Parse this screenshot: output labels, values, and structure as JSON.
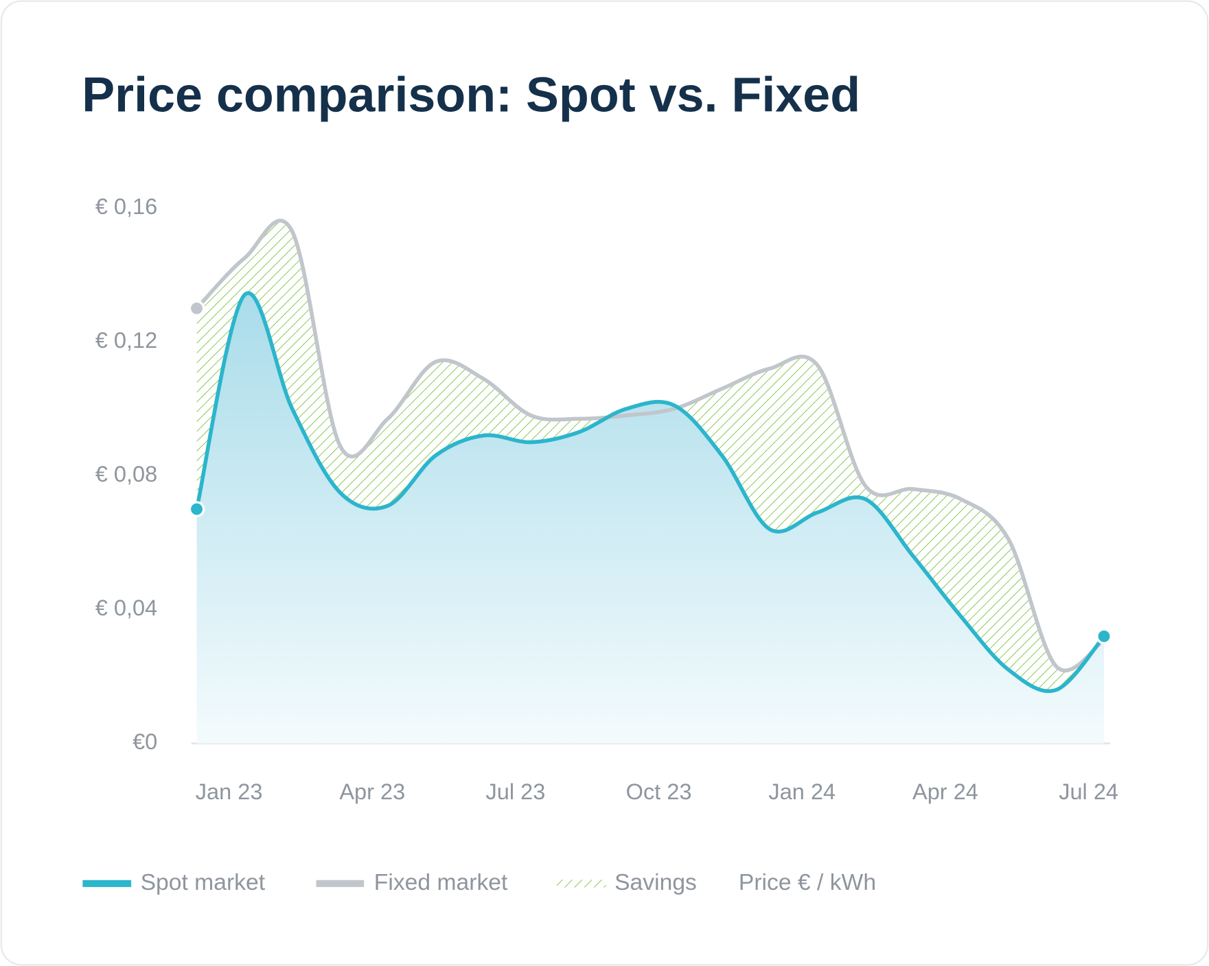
{
  "chart_data": {
    "type": "line",
    "title": "Price comparison: Spot vs. Fixed",
    "y_label": "Price € / kWh",
    "savings_label": "Savings",
    "savings_color": "#7dc242",
    "categories": [
      null,
      "Jan 23",
      null,
      null,
      "Apr 23",
      null,
      null,
      "Jul 23",
      null,
      null,
      "Oct 23",
      null,
      null,
      "Jan 24",
      null,
      null,
      "Apr 24",
      null,
      null,
      "Jul 24"
    ],
    "series": [
      {
        "name": "Spot market",
        "color": "#2cb5cc",
        "values": [
          0.07,
          0.134,
          0.1,
          0.075,
          0.071,
          0.086,
          0.092,
          0.09,
          0.093,
          0.1,
          0.101,
          0.086,
          0.064,
          0.069,
          0.073,
          0.056,
          0.038,
          0.022,
          0.016,
          0.032
        ]
      },
      {
        "name": "Fixed market",
        "color": "#c1c6cc",
        "values": [
          0.13,
          0.145,
          0.153,
          0.089,
          0.097,
          0.114,
          0.109,
          0.098,
          0.097,
          0.098,
          0.1,
          0.106,
          0.112,
          0.113,
          0.077,
          0.076,
          0.073,
          0.061,
          0.023,
          0.031
        ]
      }
    ],
    "ylim": [
      0,
      0.16
    ],
    "yticks": [
      {
        "value": 0,
        "label": "€0"
      },
      {
        "value": 0.04,
        "label": "€ 0,04"
      },
      {
        "value": 0.08,
        "label": "€ 0,08"
      },
      {
        "value": 0.12,
        "label": "€ 0,12"
      },
      {
        "value": 0.16,
        "label": "€ 0,16"
      }
    ],
    "grid": false
  }
}
